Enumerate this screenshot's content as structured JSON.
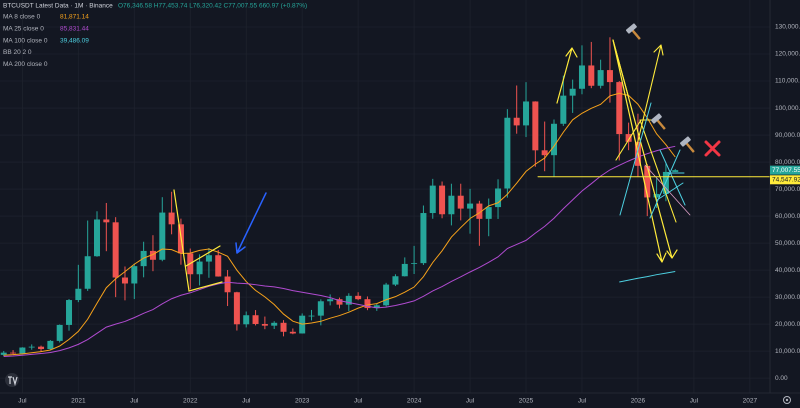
{
  "chart_data": {
    "type": "candlestick",
    "title": "BTCUSDT Latest Data · 1M · Binance",
    "subtitle": "O76,346.58 H77,453.74 L76,320.42 C77,007.55 660.97 (+0.87%)",
    "up_color": "#26a69a",
    "down_color": "#ef5350",
    "grid": true,
    "x": [
      "2020-05",
      "2020-06",
      "2020-07",
      "2020-08",
      "2020-09",
      "2020-10",
      "2020-11",
      "2020-12",
      "2021-01",
      "2021-02",
      "2021-03",
      "2021-04",
      "2021-05",
      "2021-06",
      "2021-07",
      "2021-08",
      "2021-09",
      "2021-10",
      "2021-11",
      "2021-12",
      "2022-01",
      "2022-02",
      "2022-03",
      "2022-04",
      "2022-05",
      "2022-06",
      "2022-07",
      "2022-08",
      "2022-09",
      "2022-10",
      "2022-11",
      "2022-12",
      "2023-01",
      "2023-02",
      "2023-03",
      "2023-04",
      "2023-05",
      "2023-06",
      "2023-07",
      "2023-08",
      "2023-09",
      "2023-10",
      "2023-11",
      "2023-12",
      "2024-01",
      "2024-02",
      "2024-03",
      "2024-04",
      "2024-05",
      "2024-06",
      "2024-07",
      "2024-08",
      "2024-09",
      "2024-10",
      "2024-11",
      "2024-12",
      "2025-01",
      "2025-02",
      "2025-03",
      "2025-04",
      "2025-05",
      "2025-06",
      "2025-07",
      "2025-08",
      "2025-09",
      "2025-10",
      "2025-11",
      "2025-12",
      "2026-01",
      "2026-02",
      "2026-03",
      "2026-04",
      "2026-05"
    ],
    "open": [
      8620,
      9448,
      9138,
      11335,
      11649,
      10776,
      13791,
      19700,
      28923,
      33092,
      45135,
      58740,
      57694,
      37253,
      35045,
      41461,
      47100,
      43824,
      61299,
      56950,
      46216,
      38466,
      43160,
      45510,
      37630,
      31801,
      19942,
      23293,
      20050,
      19423,
      20490,
      17164,
      16542,
      23125,
      23141,
      28465,
      29233,
      27210,
      30472,
      29232,
      25940,
      26962,
      34639,
      37723,
      42283,
      42580,
      61130,
      71280,
      60672,
      67540,
      62772,
      64628,
      58974,
      63327,
      70215,
      96407,
      93576,
      102429,
      84350,
      82550,
      94172,
      104591,
      107135,
      115764,
      108246,
      114048,
      109608,
      90360,
      87500,
      78600,
      66900,
      68200,
      76346.58
    ],
    "high": [
      10067,
      10380,
      11444,
      12486,
      12050,
      14100,
      19863,
      29300,
      41950,
      58352,
      61781,
      64854,
      59600,
      41330,
      42448,
      50500,
      52920,
      67000,
      69000,
      59053,
      47990,
      45821,
      48189,
      47444,
      40023,
      31982,
      24668,
      25211,
      22799,
      21085,
      21480,
      18387,
      23960,
      25250,
      29184,
      31000,
      29820,
      31431,
      31804,
      30244,
      27483,
      35280,
      38450,
      44700,
      48969,
      63913,
      73777,
      72797,
      71979,
      71980,
      70080,
      65660,
      66498,
      73620,
      99588,
      108353,
      109588,
      102500,
      95000,
      95758,
      112000,
      110530,
      123218,
      124474,
      117900,
      126199,
      110000,
      94600,
      97900,
      79300,
      74000,
      79500,
      77453.74
    ],
    "low": [
      8106,
      8833,
      8893,
      10518,
      9825,
      10375,
      13195,
      17572,
      28130,
      32296,
      44950,
      47000,
      30000,
      28805,
      29278,
      37332,
      39600,
      43283,
      53256,
      42000,
      32917,
      34322,
      37155,
      37578,
      26700,
      17622,
      18781,
      19520,
      18125,
      18190,
      15476,
      16256,
      16500,
      21351,
      19549,
      26942,
      25811,
      24800,
      28861,
      25166,
      24901,
      26538,
      34097,
      37629,
      38555,
      41884,
      59005,
      59191,
      56552,
      58402,
      53485,
      49000,
      52550,
      58946,
      66835,
      90500,
      89256,
      78258,
      76606,
      74508,
      93377,
      98200,
      105100,
      107350,
      107255,
      102000,
      80600,
      84400,
      74500,
      60000,
      63000,
      65500,
      76320.42
    ],
    "close": [
      9448,
      9138,
      11335,
      11649,
      10776,
      13791,
      19700,
      28923,
      33092,
      45135,
      58740,
      57694,
      37253,
      35045,
      41461,
      47100,
      43824,
      61299,
      56950,
      46216,
      38466,
      43160,
      45510,
      37630,
      31801,
      19942,
      23293,
      20050,
      19423,
      20490,
      17164,
      16542,
      23125,
      23141,
      28465,
      29233,
      27210,
      30472,
      29232,
      25940,
      26962,
      34639,
      37723,
      42283,
      42580,
      61130,
      71280,
      60672,
      67540,
      62772,
      64628,
      58974,
      63327,
      70215,
      96407,
      93576,
      102429,
      84350,
      82550,
      94172,
      104591,
      107135,
      115764,
      108246,
      114048,
      109608,
      90360,
      87500,
      78600,
      66900,
      68200,
      76346.58,
      77007.55
    ],
    "lines": [
      {
        "name": "MA 8 close 0",
        "color": "#f7a21b",
        "value_label": "81,871.14",
        "values": [
          8500,
          8700,
          9000,
          9400,
          9800,
          10400,
          11900,
          14345,
          17300,
          21800,
          27726,
          33481,
          36791,
          39448,
          42168,
          44440,
          45782,
          47802,
          47578,
          46144,
          46295,
          47310,
          47816,
          46632,
          45129,
          39959,
          35752,
          32482,
          30101,
          27267,
          23724,
          21088,
          20004,
          20404,
          21050,
          22198,
          23171,
          24419,
          25928,
          27102,
          27582,
          29019,
          30176,
          31808,
          33729,
          37561,
          42817,
          47159,
          52231,
          55748,
          59111,
          61197,
          63790,
          64926,
          68067,
          72180,
          76541,
          79238,
          81479,
          85878,
          91036,
          95651,
          98071,
          99905,
          101357,
          104514,
          105491,
          104657,
          101408,
          96378,
          90433,
          86445,
          81871.14
        ]
      },
      {
        "name": "MA 25 close 0",
        "color": "#b04bd0",
        "value_label": "85,831.44",
        "values": [
          8000,
          8200,
          8500,
          8800,
          9100,
          9500,
          10200,
          11200,
          12500,
          14300,
          16600,
          18900,
          20000,
          21000,
          22400,
          24000,
          25400,
          27500,
          29400,
          30700,
          31600,
          32800,
          34000,
          34900,
          35500,
          35200,
          35000,
          34600,
          34100,
          33800,
          33200,
          32400,
          31800,
          31200,
          30600,
          29800,
          28700,
          28000,
          27300,
          26600,
          26000,
          26300,
          26900,
          27700,
          28600,
          30300,
          32300,
          33900,
          35800,
          37500,
          39300,
          41000,
          42900,
          44900,
          48000,
          49500,
          51000,
          53700,
          56200,
          59200,
          62700,
          66000,
          69300,
          72000,
          74800,
          77100,
          78800,
          80400,
          81900,
          83100,
          84200,
          85100,
          85831.44
        ]
      },
      {
        "name": "MA 100 close 0",
        "color": "#4dd0e1",
        "value_label": "39,486.09",
        "values": [
          null,
          null,
          null,
          null,
          null,
          null,
          null,
          null,
          null,
          null,
          null,
          null,
          null,
          null,
          null,
          null,
          null,
          null,
          null,
          null,
          null,
          null,
          null,
          null,
          null,
          null,
          null,
          null,
          null,
          null,
          null,
          null,
          null,
          null,
          null,
          null,
          null,
          null,
          null,
          null,
          null,
          null,
          null,
          null,
          null,
          null,
          null,
          null,
          null,
          null,
          null,
          null,
          null,
          null,
          null,
          null,
          null,
          null,
          null,
          null,
          null,
          null,
          null,
          null,
          null,
          null,
          35600,
          36300,
          37000,
          37600,
          38300,
          38900,
          39486.09
        ]
      }
    ],
    "other_indicators": [
      "BB 20 2 0",
      "MA 200 close 0"
    ],
    "last_price": {
      "value": 77007.55,
      "label": "77,007.55"
    },
    "horizontal_line": {
      "value": 74547.92,
      "label": "74,547.92",
      "color": "#ffeb3b"
    },
    "xlim": [
      2020.3,
      2027.18
    ],
    "xticks": [
      {
        "value": 2020.5,
        "label": "Jul"
      },
      2021,
      {
        "value": 2021.5,
        "label": "Jul"
      },
      2022,
      {
        "value": 2022.5,
        "label": "Jul"
      },
      2023,
      {
        "value": 2023.5,
        "label": "Jul"
      },
      2024,
      {
        "value": 2024.5,
        "label": "Jul"
      },
      2025,
      {
        "value": 2025.5,
        "label": "Jul"
      },
      2026,
      {
        "value": 2026.5,
        "label": "Jul"
      },
      2027
    ],
    "ylim": [
      -5500,
      140000
    ],
    "yticks": [
      {
        "value": 0,
        "label": "0.00"
      },
      {
        "value": 10000,
        "label": "10,000.00"
      },
      {
        "value": 20000,
        "label": "20,000.00"
      },
      {
        "value": 30000,
        "label": "30,000.00"
      },
      {
        "value": 40000,
        "label": "40,000.00"
      },
      {
        "value": 50000,
        "label": "50,000.00"
      },
      {
        "value": 60000,
        "label": "60,000.00"
      },
      {
        "value": 70000,
        "label": "70,000.00"
      },
      {
        "value": 80000,
        "label": "80,000.00"
      },
      {
        "value": 90000,
        "label": "90,000.00"
      },
      {
        "value": 100000,
        "label": "100,000.00"
      },
      {
        "value": 110000,
        "label": "110,000.00"
      },
      {
        "value": 120000,
        "label": "120,000.00"
      },
      {
        "value": 130000,
        "label": "130,000.00"
      }
    ]
  }
}
